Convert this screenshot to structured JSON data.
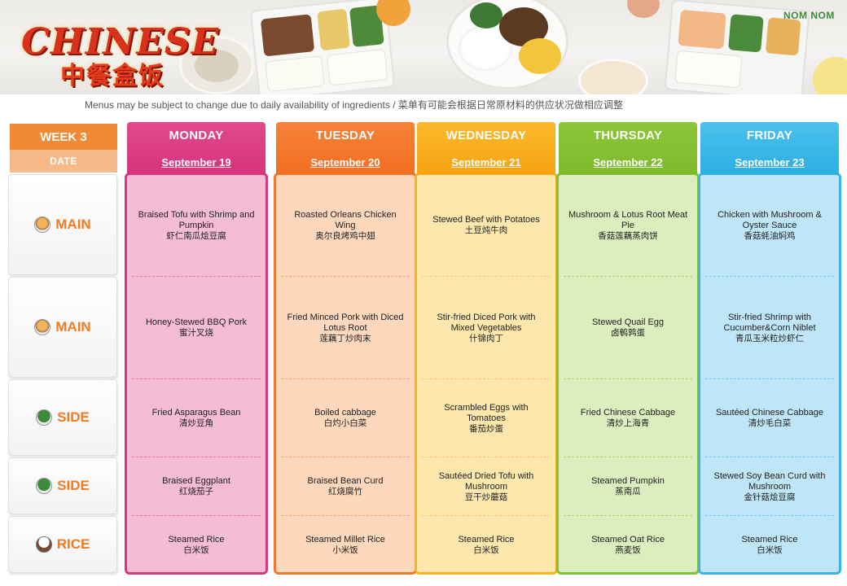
{
  "header": {
    "title": "CHINESE",
    "subtitle": "中餐盒饭",
    "brand": "NOM NOM",
    "notice": "Menus may be subject to change due to daily availability  of ingredients / 菜单有可能会根据日常原材料的供应状况做相应调整"
  },
  "week_label": "WEEK 3",
  "date_label": "DATE",
  "categories": [
    {
      "label": "MAIN",
      "icon": "dumpling-bowl-icon"
    },
    {
      "label": "MAIN",
      "icon": "fries-bowl-icon"
    },
    {
      "label": "SIDE",
      "icon": "vegetable-bowl-icon"
    },
    {
      "label": "SIDE",
      "icon": "vegetable-bowl-icon"
    },
    {
      "label": "RICE",
      "icon": "rice-bowl-icon"
    }
  ],
  "days": [
    {
      "name": "MONDAY",
      "date": "September 19",
      "colors": {
        "head_top": "#e04a8a",
        "head_bottom": "#d6337d",
        "body": "#f5bcd6",
        "border": "#d63a7e"
      },
      "items": [
        {
          "en": "Braised Tofu with Shrimp and Pumpkin",
          "zh": "虾仁南瓜烩豆腐"
        },
        {
          "en": "Honey-Stewed BBQ Pork",
          "zh": "蜜汁叉烧"
        },
        {
          "en": "Fried Asparagus Bean",
          "zh": "清炒豆角"
        },
        {
          "en": "Braised Eggplant",
          "zh": "红烧茄子"
        },
        {
          "en": "Steamed Rice",
          "zh": "白米饭"
        }
      ]
    },
    {
      "name": "TUESDAY",
      "date": "September 20",
      "colors": {
        "head_top": "#f7823a",
        "head_bottom": "#f26f22",
        "body": "#fdd8bd",
        "border": "#f07a2c"
      },
      "items": [
        {
          "en": "Roasted Orleans Chicken Wing",
          "zh": "奥尔良烤鸡中翅"
        },
        {
          "en": "Fried Minced Pork with Diced Lotus Root",
          "zh": "莲藕丁炒肉末"
        },
        {
          "en": "Boiled cabbage",
          "zh": "白灼小白菜"
        },
        {
          "en": "Braised Bean Curd",
          "zh": "红烧腐竹"
        },
        {
          "en": "Steamed Millet Rice",
          "zh": "小米饭"
        }
      ]
    },
    {
      "name": "WEDNESDAY",
      "date": "September 21",
      "colors": {
        "head_top": "#fbb82a",
        "head_bottom": "#f5a412",
        "body": "#fde7ad",
        "border": "#f4b323"
      },
      "items": [
        {
          "en": "Stewed Beef with Potatoes",
          "zh": "土豆炖牛肉"
        },
        {
          "en": "Stir-fried Diced Pork with Mixed Vegetables",
          "zh": "什锦肉丁"
        },
        {
          "en": "Scrambled Eggs with Tomatoes",
          "zh": "番茄炒蛋"
        },
        {
          "en": "Sautéed Dried Tofu with Mushroom",
          "zh": "豆干炒蘑菇"
        },
        {
          "en": "Steamed Rice",
          "zh": "白米饭"
        }
      ]
    },
    {
      "name": "THURSDAY",
      "date": "September 22",
      "colors": {
        "head_top": "#8cc63a",
        "head_bottom": "#7dba2a",
        "body": "#dceebe",
        "border": "#86c03a"
      },
      "items": [
        {
          "en": "Mushroom & Lotus Root Meat Pie",
          "zh": "香菇莲藕蒸肉饼"
        },
        {
          "en": "Stewed Quail Egg",
          "zh": "卤鹌鹑蛋"
        },
        {
          "en": "Fried Chinese Cabbage",
          "zh": "清炒上海青"
        },
        {
          "en": "Steamed Pumpkin",
          "zh": "蒸南瓜"
        },
        {
          "en": "Steamed Oat Rice",
          "zh": "燕麦饭"
        }
      ]
    },
    {
      "name": "FRIDAY",
      "date": "September 23",
      "colors": {
        "head_top": "#4cc0ec",
        "head_bottom": "#2bafe2",
        "body": "#bfe6f8",
        "border": "#3bb4e6"
      },
      "items": [
        {
          "en": "Chicken with Mushroom & Oyster Sauce",
          "zh": "香菇蚝油焖鸡"
        },
        {
          "en": "Stir-fried Shrimp with Cucumber&Corn Niblet",
          "zh": "青瓜玉米粒炒虾仁"
        },
        {
          "en": "Sautéed Chinese Cabbage",
          "zh": "清炒毛白菜"
        },
        {
          "en": "Stewed Soy Bean Curd with Mushroom",
          "zh": "金针菇烩豆腐"
        },
        {
          "en": "Steamed Rice",
          "zh": "白米饭"
        }
      ]
    }
  ]
}
